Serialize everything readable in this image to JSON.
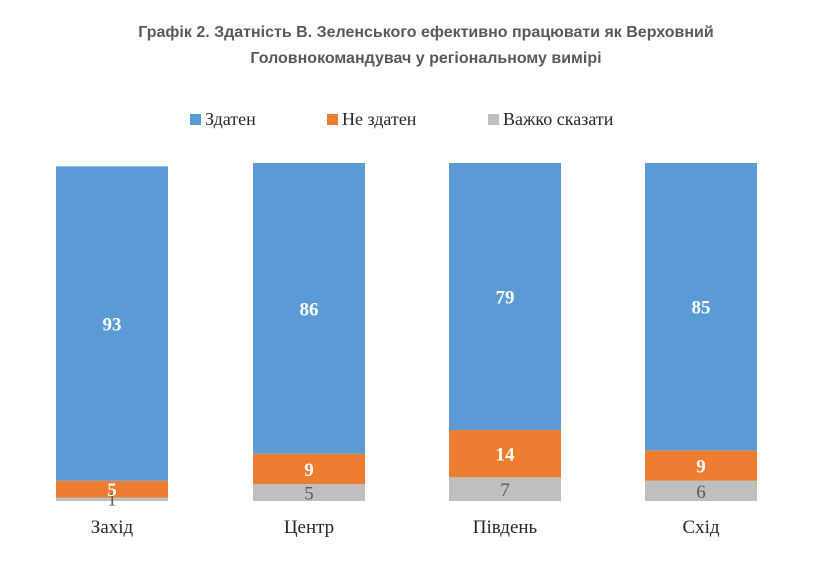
{
  "chart_data": {
    "type": "bar",
    "stacked": true,
    "title": "Графік 2. Здатність В. Зеленського ефективно працювати як Верховний Головнокомандувач у регіональному вимірі",
    "title_lines": [
      "Графік 2. Здатність В. Зеленського ефективно працювати як Верховний",
      "Головнокомандувач у регіональному вимірі"
    ],
    "categories": [
      "Захід",
      "Центр",
      "Південь",
      "Схід"
    ],
    "series": [
      {
        "name": "Здатен",
        "color": "#5B9BD5",
        "label_color": "#ffffff",
        "label_bold": true,
        "values": [
          93,
          86,
          79,
          85
        ]
      },
      {
        "name": "Не здатен",
        "color": "#ED7D31",
        "label_color": "#ffffff",
        "label_bold": true,
        "values": [
          5,
          9,
          14,
          9
        ]
      },
      {
        "name": "Важко сказати",
        "color": "#BFBFBF",
        "label_color": "#595959",
        "label_bold": false,
        "values": [
          1,
          5,
          7,
          6
        ]
      }
    ],
    "stack_order_bottom_to_top": [
      "Важко сказати",
      "Не здатен",
      "Здатен"
    ],
    "ylim": [
      0,
      100
    ],
    "grid": false,
    "legend_position": "top",
    "xlabel": "",
    "ylabel": ""
  }
}
